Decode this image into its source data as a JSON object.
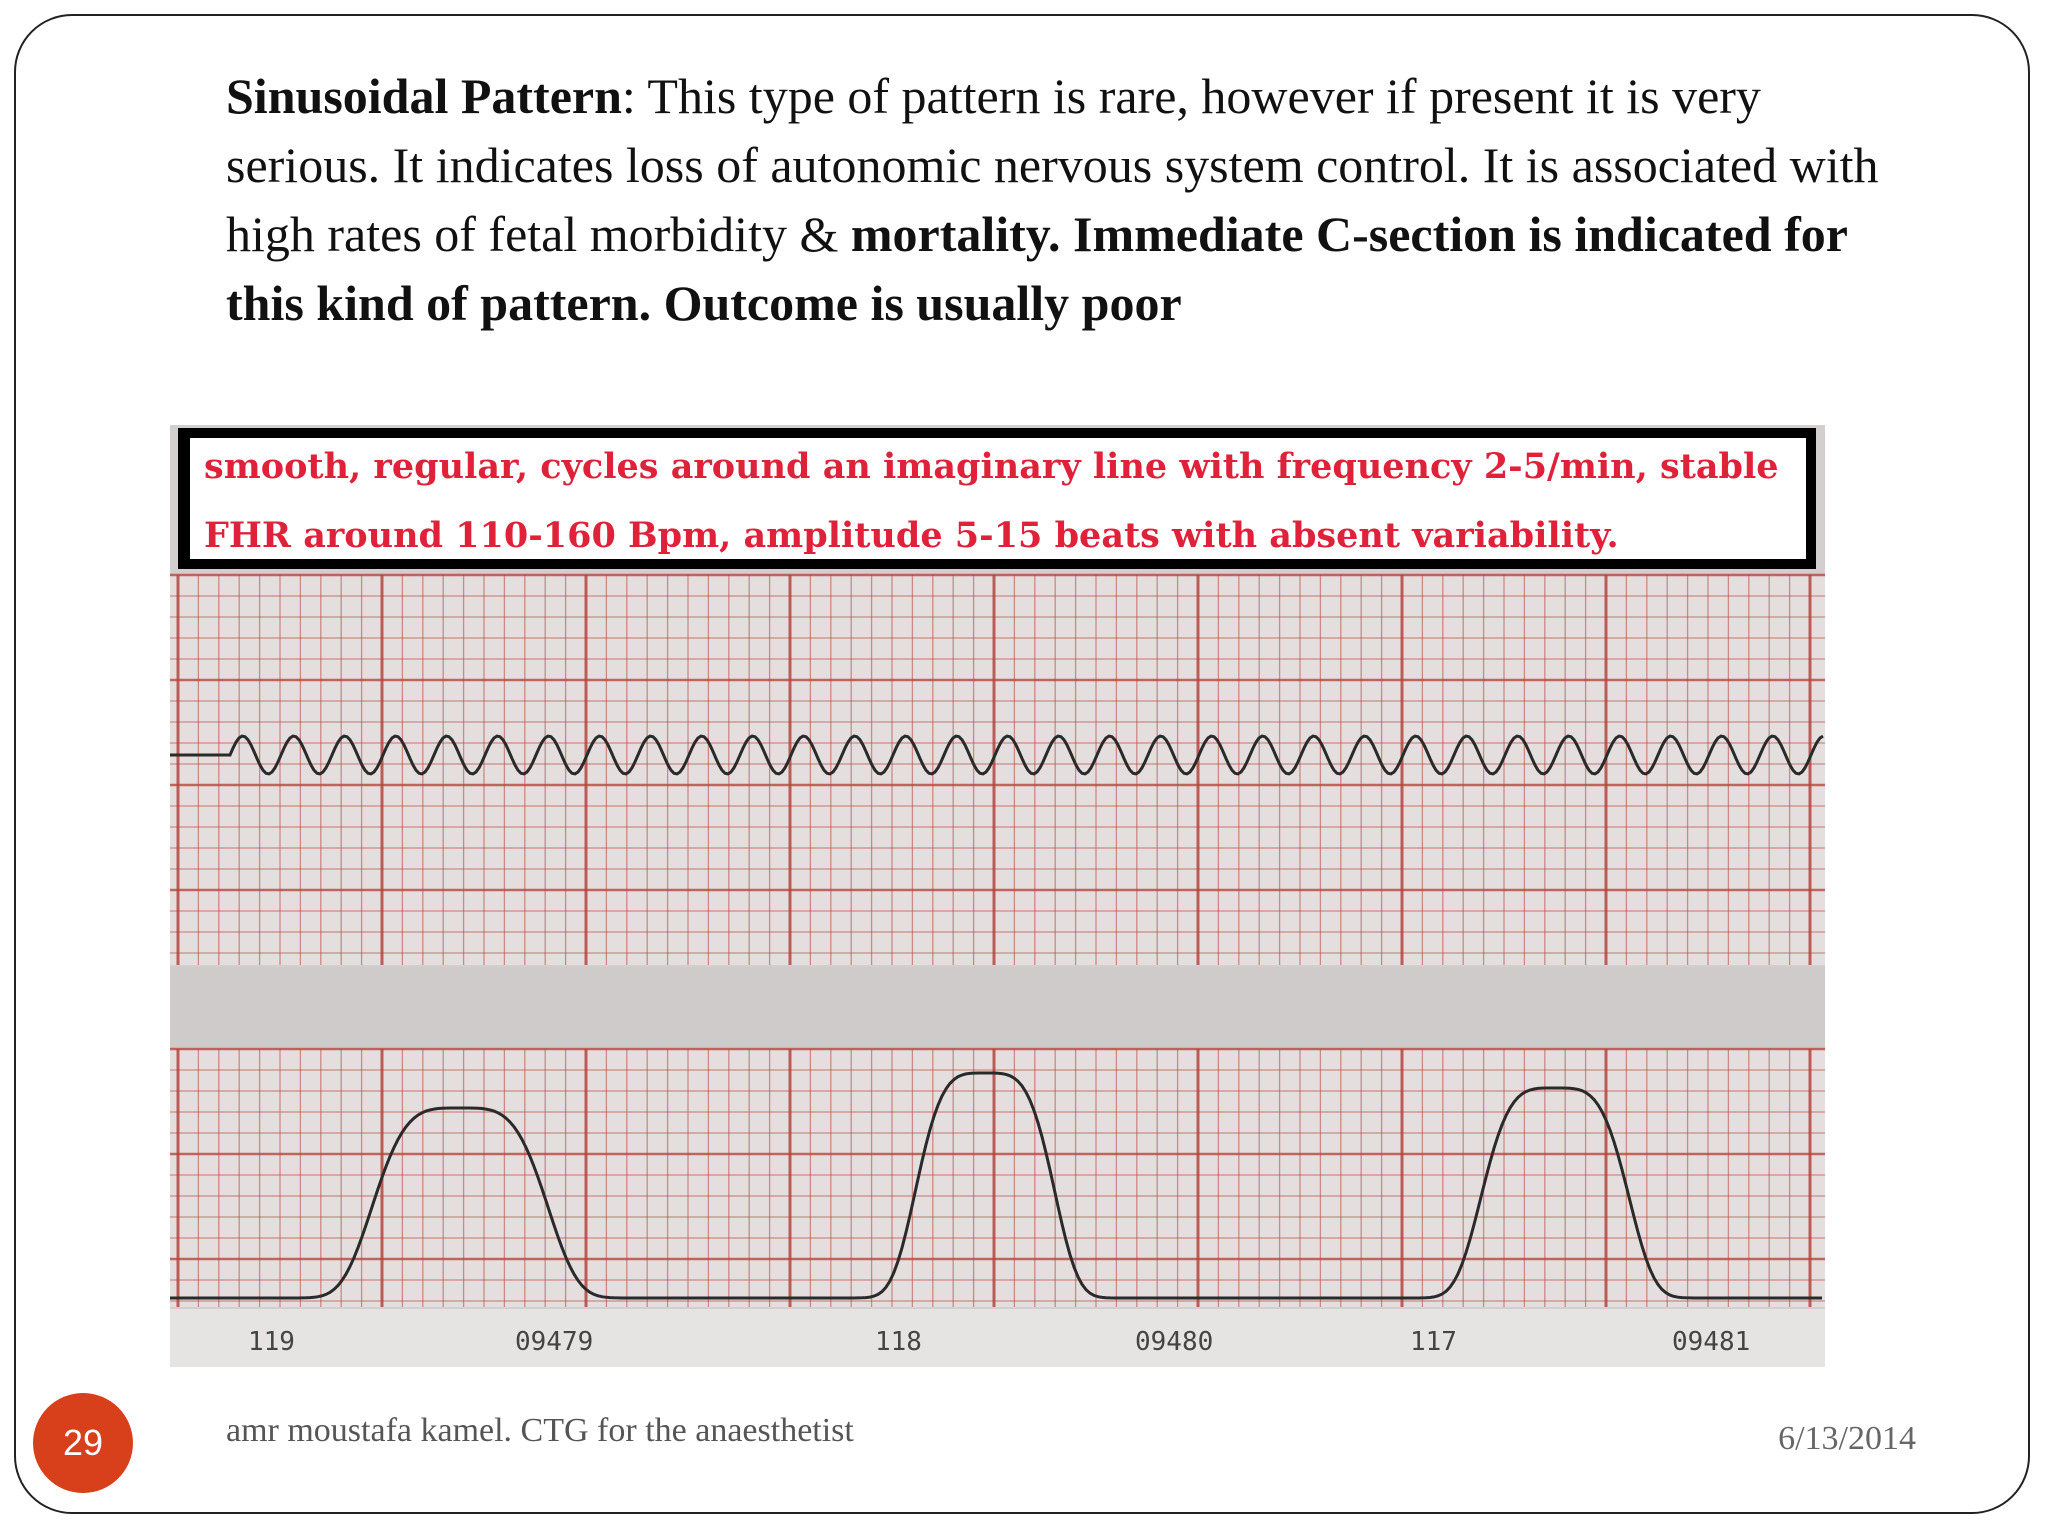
{
  "slide": {
    "heading_bold": "Sinusoidal Pattern",
    "heading_colon": ":",
    "body_regular": " This type of pattern is rare, however if present it is very serious. It indicates loss of autonomic nervous system control. It is associated with high rates of fetal morbidity & ",
    "body_bold": "mortality. Immediate C-section is indicated for this kind of pattern. Outcome is usually poor",
    "number": "29",
    "footer": "amr moustafa kamel. CTG for the anaesthetist",
    "date": "6/13/2014"
  },
  "figure": {
    "caption_line1": "smooth, regular, cycles around an imaginary line with frequency 2-5/min, stable",
    "caption_line2": "FHR  around 110-160 Bpm, amplitude 5-15 beats with absent variability.",
    "strip_labels": [
      "119",
      "09479",
      "118",
      "09480",
      "117",
      "09481"
    ]
  },
  "colors": {
    "slide_number_bg": "#d8401c",
    "caption_text": "#e0213a",
    "grid_line": "#b5473f",
    "trace": "#2a2a2a"
  }
}
